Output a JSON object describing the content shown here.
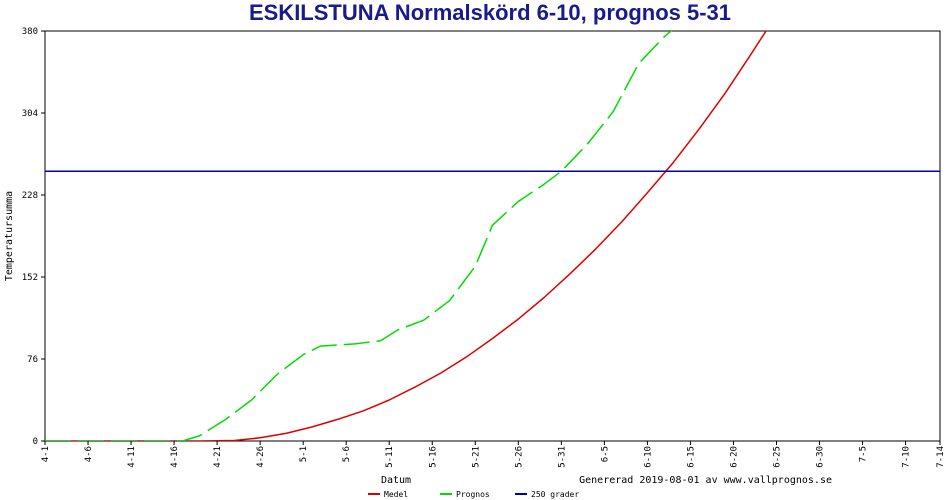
{
  "chart_data": {
    "type": "line",
    "title": "ESKILSTUNA Normalskörd 6-10, prognos 5-31",
    "xlabel": "Datum",
    "ylabel": "Temperatursumma",
    "generated_text": "Genererad 2019-08-01 av www.vallprognos.se",
    "x_start": "4-1",
    "x_end": "7-14",
    "ylim": [
      0,
      380
    ],
    "y_ticks": [
      0,
      76,
      152,
      228,
      304,
      380
    ],
    "x_ticks": [
      "4-1",
      "4-6",
      "4-11",
      "4-16",
      "4-21",
      "4-26",
      "5-1",
      "5-6",
      "5-11",
      "5-16",
      "5-21",
      "5-26",
      "5-31",
      "6-5",
      "6-10",
      "6-15",
      "6-20",
      "6-25",
      "6-30",
      "7-5",
      "7-10",
      "7-14"
    ],
    "grid": false,
    "legend_position": "bottom",
    "series": [
      {
        "name": "Medel",
        "color": "#dd0000",
        "style": "solid",
        "points": [
          [
            "4-1",
            0
          ],
          [
            "4-19",
            0
          ],
          [
            "4-23",
            0.5
          ],
          [
            "4-26",
            3
          ],
          [
            "4-29",
            7
          ],
          [
            "5-2",
            13
          ],
          [
            "5-5",
            20
          ],
          [
            "5-8",
            28
          ],
          [
            "5-11",
            38
          ],
          [
            "5-14",
            50
          ],
          [
            "5-17",
            63
          ],
          [
            "5-20",
            78
          ],
          [
            "5-23",
            95
          ],
          [
            "5-26",
            113
          ],
          [
            "5-29",
            133
          ],
          [
            "6-1",
            155
          ],
          [
            "6-4",
            178
          ],
          [
            "6-7",
            203
          ],
          [
            "6-10",
            230
          ],
          [
            "6-13",
            258
          ],
          [
            "6-16",
            289
          ],
          [
            "6-19",
            322
          ],
          [
            "6-22",
            358
          ],
          [
            "6-25",
            395
          ]
        ]
      },
      {
        "name": "Prognos",
        "color": "#00dd00",
        "style": "dashed",
        "points": [
          [
            "4-1",
            0
          ],
          [
            "4-17",
            0
          ],
          [
            "4-19",
            5
          ],
          [
            "4-22",
            20
          ],
          [
            "4-25",
            38
          ],
          [
            "4-28",
            62
          ],
          [
            "5-1",
            80
          ],
          [
            "5-3",
            88
          ],
          [
            "5-7",
            90
          ],
          [
            "5-10",
            93
          ],
          [
            "5-12",
            103
          ],
          [
            "5-15",
            112
          ],
          [
            "5-18",
            130
          ],
          [
            "5-21",
            162
          ],
          [
            "5-23",
            200
          ],
          [
            "5-26",
            222
          ],
          [
            "5-29",
            238
          ],
          [
            "5-31",
            250
          ],
          [
            "6-3",
            275
          ],
          [
            "6-6",
            305
          ],
          [
            "6-9",
            350
          ],
          [
            "6-12",
            375
          ],
          [
            "6-15",
            395
          ]
        ]
      },
      {
        "name": "250 grader",
        "color": "#0000aa",
        "style": "solid",
        "points": [
          [
            "4-1",
            250
          ],
          [
            "7-14",
            250
          ]
        ]
      }
    ]
  }
}
